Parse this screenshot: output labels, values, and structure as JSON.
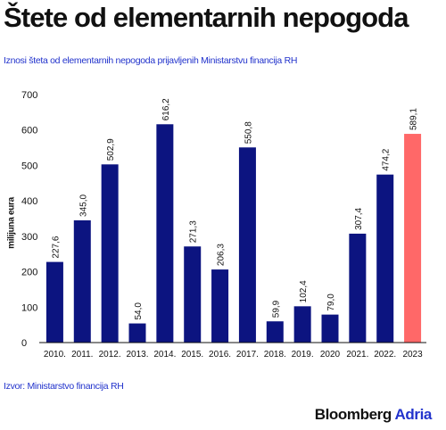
{
  "chart_data": {
    "type": "bar",
    "title": "Štete od elementarnih nepogoda",
    "subtitle": "Iznosi šteta od elementarnih nepogoda prijavljenih Ministarstvu financija RH",
    "xlabel": "",
    "ylabel": "milijuna eura",
    "ylim": [
      0,
      700
    ],
    "yticks": [
      "0",
      "100",
      "200",
      "300",
      "400",
      "500",
      "600",
      "700"
    ],
    "grid": false,
    "categories": [
      "2010.",
      "2011.",
      "2012.",
      "2013.",
      "2014.",
      "2015.",
      "2016.",
      "2017.",
      "2018.",
      "2019.",
      "2020",
      "2021.",
      "2022.",
      "2023"
    ],
    "values": [
      227.6,
      345.0,
      502.9,
      54.0,
      616.2,
      271.3,
      206.3,
      550.8,
      59.9,
      102.4,
      79.0,
      307.4,
      474.2,
      589.1
    ],
    "value_labels": [
      "227,6",
      "345,0",
      "502,9",
      "54,0",
      "616,2",
      "271,3",
      "206,3",
      "550,8",
      "59,9",
      "102,4",
      "79,0",
      "307,4",
      "474,2",
      "589,1"
    ],
    "highlight_index": 13,
    "colors": {
      "bar": "#0c1480",
      "highlight": "#ff6868",
      "axis": "#111111"
    }
  },
  "footer": {
    "source": "Izvor: Ministarstvo financija RH",
    "brand_main": "Bloomberg",
    "brand_accent": "Adria"
  }
}
